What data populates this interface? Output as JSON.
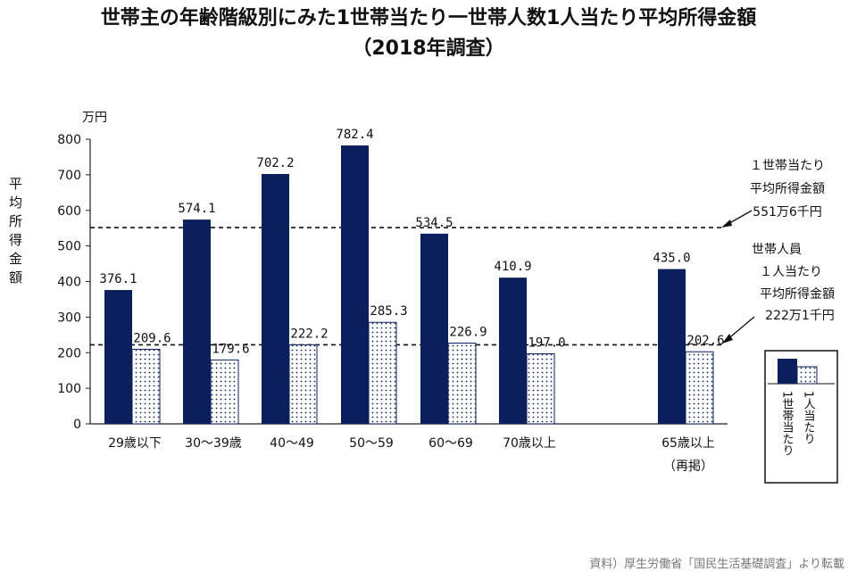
{
  "chart_data": {
    "type": "bar",
    "title_line1": "世帯主の年齢階級別にみた1世帯当たり一世帯人数1人当たり平均所得金額",
    "title_line2": "（2018年調査）",
    "unit": "万円",
    "ylabel": "平均所得金額",
    "ylim": [
      0,
      800
    ],
    "yticks": [
      0,
      100,
      200,
      300,
      400,
      500,
      600,
      700,
      800
    ],
    "categories": [
      "29歳以下",
      "30～39歳",
      "40～49",
      "50～59",
      "60～69",
      "70歳以上",
      "65歳以上"
    ],
    "category_notes": [
      "",
      "",
      "",
      "",
      "",
      "",
      "（再掲）"
    ],
    "series": [
      {
        "name": "1世帯当たり",
        "color": "#0b1f5c",
        "values": [
          376.1,
          574.1,
          702.2,
          782.4,
          534.5,
          410.9,
          435.0
        ],
        "labels": [
          "376.1",
          "574.1",
          "702.2",
          "782.4",
          "534.5",
          "410.9",
          "435.0"
        ]
      },
      {
        "name": "1人当たり",
        "color": "#ffffff",
        "pattern": "dots",
        "values": [
          209.6,
          179.6,
          222.2,
          285.3,
          226.9,
          197.0,
          202.6
        ],
        "labels": [
          "209.6",
          "179.6",
          "222.2",
          "285.3",
          "226.9",
          "197.0",
          "202.6"
        ]
      }
    ],
    "reference_lines": [
      {
        "value": 551.6,
        "label_lines": [
          "１世帯当たり",
          "平均所得金額",
          "551万6千円"
        ]
      },
      {
        "value": 222.1,
        "label_lines": [
          "世帯人員",
          "１人当たり",
          "平均所得金額",
          "222万1千円"
        ]
      }
    ],
    "legend": {
      "position": "right",
      "entries": [
        "1世帯当たり",
        "1人当たり"
      ]
    }
  },
  "source": "資料）厚生労働省「国民生活基礎調査」より転載"
}
